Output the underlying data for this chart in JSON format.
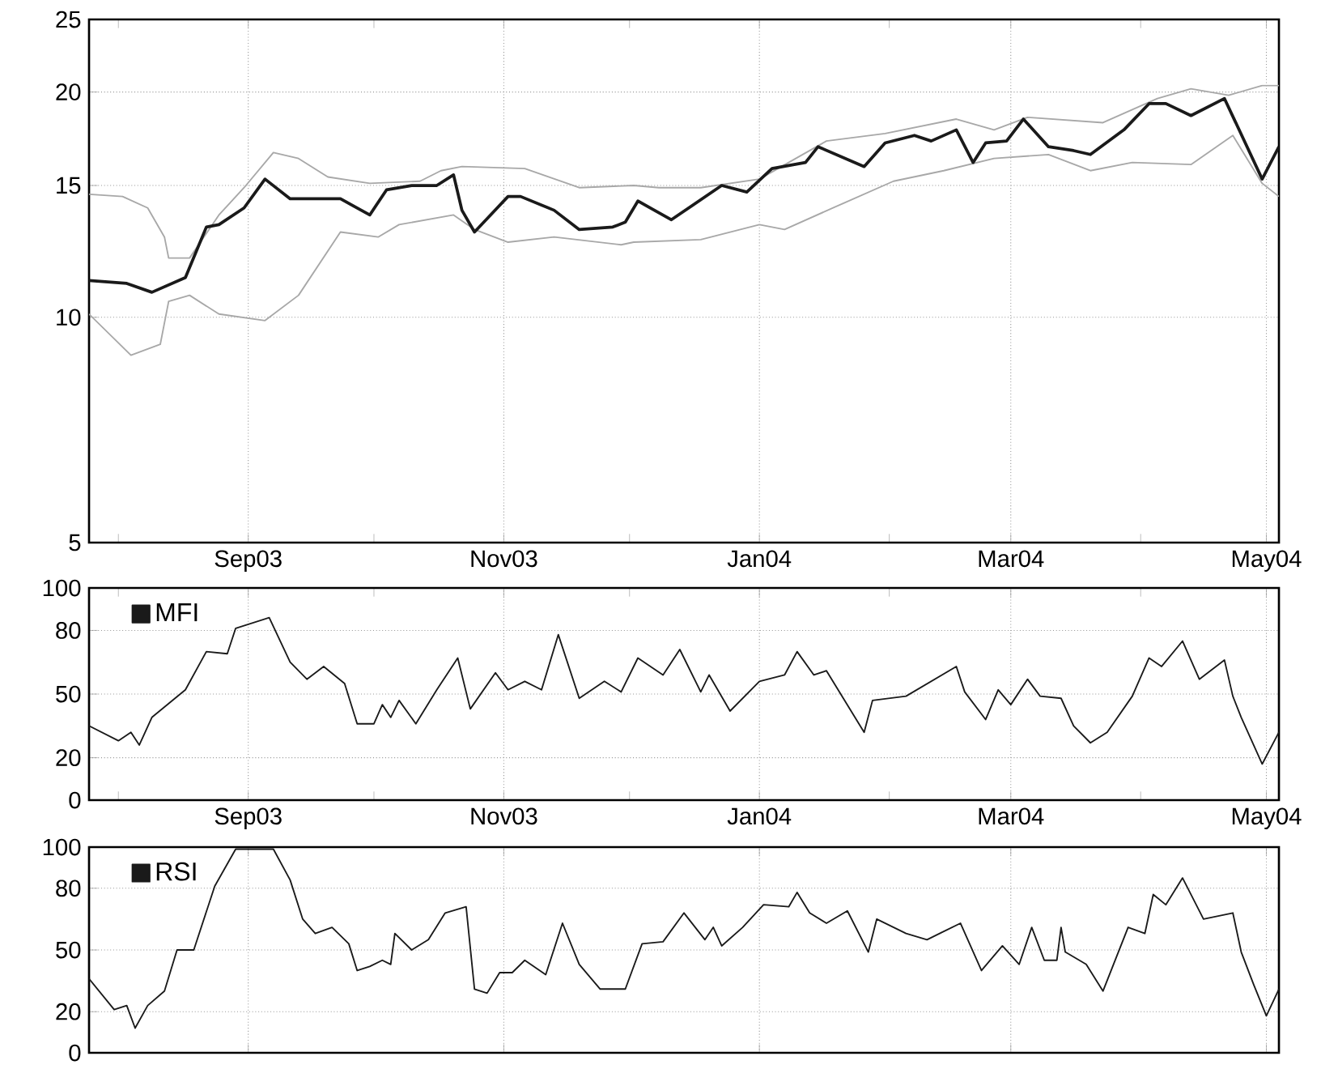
{
  "chart_data": [
    {
      "type": "line",
      "log": "y",
      "grid": true,
      "legend": false,
      "xlim": [
        "2003-07-25",
        "2004-05-04"
      ],
      "ylim": [
        5,
        25
      ],
      "yticks": [
        5,
        10,
        15,
        20,
        25
      ],
      "xticks": [
        {
          "value": "2003-08-01",
          "label": null
        },
        {
          "value": "2003-09-01",
          "label": "Sep03"
        },
        {
          "value": "2003-10-01",
          "label": null
        },
        {
          "value": "2003-11-01",
          "label": "Nov03"
        },
        {
          "value": "2003-12-01",
          "label": null
        },
        {
          "value": "2004-01-01",
          "label": "Jan04"
        },
        {
          "value": "2004-02-01",
          "label": null
        },
        {
          "value": "2004-03-01",
          "label": "Mar04"
        },
        {
          "value": "2004-04-01",
          "label": null
        },
        {
          "value": "2004-05-01",
          "label": "May04"
        }
      ],
      "series": [
        {
          "color": "#a8a8a8",
          "x": [
            "2003-07-25",
            "2003-08-02",
            "2003-08-08",
            "2003-08-12",
            "2003-08-13",
            "2003-08-18",
            "2003-08-25",
            "2003-08-31",
            "2003-09-07",
            "2003-09-13",
            "2003-09-20",
            "2003-09-30",
            "2003-10-12",
            "2003-10-17",
            "2003-10-22",
            "2003-11-06",
            "2003-11-19",
            "2003-12-02",
            "2003-12-08",
            "2003-12-18",
            "2004-01-01",
            "2004-01-17",
            "2004-01-31",
            "2004-02-17",
            "2004-02-26",
            "2004-03-05",
            "2004-03-23",
            "2004-04-05",
            "2004-04-13",
            "2004-04-22",
            "2004-04-30",
            "2004-05-04"
          ],
          "values": [
            14.6,
            14.5,
            14.0,
            12.8,
            12.0,
            12.0,
            13.7,
            14.9,
            16.6,
            16.3,
            15.4,
            15.1,
            15.2,
            15.7,
            15.9,
            15.8,
            14.9,
            15.0,
            14.9,
            14.9,
            15.3,
            17.2,
            17.6,
            18.4,
            17.8,
            18.5,
            18.2,
            19.6,
            20.2,
            19.8,
            20.4,
            20.4
          ]
        },
        {
          "color": "#a8a8a8",
          "x": [
            "2003-07-25",
            "2003-08-04",
            "2003-08-11",
            "2003-08-13",
            "2003-08-18",
            "2003-08-25",
            "2003-09-05",
            "2003-09-13",
            "2003-09-23",
            "2003-10-02",
            "2003-10-07",
            "2003-10-20",
            "2003-10-25",
            "2003-11-02",
            "2003-11-13",
            "2003-11-29",
            "2003-12-02",
            "2003-12-18",
            "2004-01-01",
            "2004-01-07",
            "2004-01-21",
            "2004-02-02",
            "2004-02-14",
            "2004-02-26",
            "2004-03-10",
            "2004-03-20",
            "2004-03-30",
            "2004-04-13",
            "2004-04-23",
            "2004-04-30",
            "2004-05-04"
          ],
          "values": [
            10.1,
            8.9,
            9.2,
            10.5,
            10.7,
            10.1,
            9.9,
            10.7,
            13.0,
            12.8,
            13.3,
            13.7,
            13.1,
            12.6,
            12.8,
            12.5,
            12.6,
            12.7,
            13.3,
            13.1,
            14.2,
            15.2,
            15.7,
            16.3,
            16.5,
            15.7,
            16.1,
            16.0,
            17.5,
            15.1,
            14.5
          ]
        },
        {
          "color": "#1a1a1a",
          "x": [
            "2003-07-25",
            "2003-08-03",
            "2003-08-09",
            "2003-08-17",
            "2003-08-22",
            "2003-08-25",
            "2003-08-31",
            "2003-09-05",
            "2003-09-11",
            "2003-09-17",
            "2003-09-23",
            "2003-09-30",
            "2003-10-04",
            "2003-10-10",
            "2003-10-16",
            "2003-10-20",
            "2003-10-22",
            "2003-10-25",
            "2003-11-02",
            "2003-11-05",
            "2003-11-13",
            "2003-11-19",
            "2003-11-27",
            "2003-11-30",
            "2003-12-03",
            "2003-12-11",
            "2003-12-23",
            "2003-12-29",
            "2004-01-04",
            "2004-01-12",
            "2004-01-15",
            "2004-01-26",
            "2004-01-31",
            "2004-02-07",
            "2004-02-11",
            "2004-02-17",
            "2004-02-21",
            "2004-02-24",
            "2004-02-29",
            "2004-03-04",
            "2004-03-10",
            "2004-03-16",
            "2004-03-20",
            "2004-03-28",
            "2004-04-03",
            "2004-04-07",
            "2004-04-13",
            "2004-04-21",
            "2004-04-30",
            "2004-05-04"
          ],
          "values": [
            11.2,
            11.1,
            10.8,
            11.3,
            13.2,
            13.3,
            14.0,
            15.3,
            14.4,
            14.4,
            14.4,
            13.7,
            14.8,
            15.0,
            15.0,
            15.5,
            13.9,
            13.0,
            14.5,
            14.5,
            13.9,
            13.1,
            13.2,
            13.4,
            14.3,
            13.5,
            15.0,
            14.7,
            15.8,
            16.1,
            16.9,
            15.9,
            17.1,
            17.5,
            17.2,
            17.8,
            16.1,
            17.1,
            17.2,
            18.4,
            16.9,
            16.7,
            16.5,
            17.8,
            19.3,
            19.3,
            18.6,
            19.6,
            15.3,
            16.9
          ]
        }
      ]
    },
    {
      "type": "line",
      "grid": true,
      "legend": "top left",
      "xlim": [
        "2003-07-25",
        "2004-05-04"
      ],
      "ylim": [
        0,
        100
      ],
      "yticks": [
        0,
        20,
        50,
        80,
        100
      ],
      "xticks": [
        {
          "value": "2003-08-01",
          "label": null
        },
        {
          "value": "2003-09-01",
          "label": "Sep03"
        },
        {
          "value": "2003-10-01",
          "label": null
        },
        {
          "value": "2003-11-01",
          "label": "Nov03"
        },
        {
          "value": "2003-12-01",
          "label": null
        },
        {
          "value": "2004-01-01",
          "label": "Jan04"
        },
        {
          "value": "2004-02-01",
          "label": null
        },
        {
          "value": "2004-03-01",
          "label": "Mar04"
        },
        {
          "value": "2004-04-01",
          "label": null
        },
        {
          "value": "2004-05-01",
          "label": "May04"
        }
      ],
      "series": [
        {
          "name": "MFI",
          "color": "#1a1a1a",
          "x": [
            "2003-07-25",
            "2003-08-01",
            "2003-08-04",
            "2003-08-06",
            "2003-08-09",
            "2003-08-17",
            "2003-08-22",
            "2003-08-27",
            "2003-08-29",
            "2003-09-06",
            "2003-09-11",
            "2003-09-15",
            "2003-09-19",
            "2003-09-24",
            "2003-09-27",
            "2003-10-01",
            "2003-10-03",
            "2003-10-05",
            "2003-10-07",
            "2003-10-11",
            "2003-10-16",
            "2003-10-21",
            "2003-10-24",
            "2003-10-30",
            "2003-11-02",
            "2003-11-06",
            "2003-11-10",
            "2003-11-14",
            "2003-11-19",
            "2003-11-25",
            "2003-11-29",
            "2003-12-03",
            "2003-12-09",
            "2003-12-13",
            "2003-12-18",
            "2003-12-20",
            "2003-12-25",
            "2004-01-01",
            "2004-01-07",
            "2004-01-10",
            "2004-01-14",
            "2004-01-17",
            "2004-01-26",
            "2004-01-28",
            "2004-02-05",
            "2004-02-17",
            "2004-02-19",
            "2004-02-24",
            "2004-02-27",
            "2004-03-01",
            "2004-03-05",
            "2004-03-08",
            "2004-03-13",
            "2004-03-16",
            "2004-03-20",
            "2004-03-24",
            "2004-03-30",
            "2004-04-03",
            "2004-04-06",
            "2004-04-11",
            "2004-04-15",
            "2004-04-21",
            "2004-04-23",
            "2004-04-25",
            "2004-04-30",
            "2004-05-04"
          ],
          "values": [
            35,
            28,
            32,
            26,
            39,
            52,
            70,
            69,
            81,
            86,
            65,
            57,
            63,
            55,
            36,
            36,
            45,
            39,
            47,
            36,
            52,
            67,
            43,
            60,
            52,
            56,
            52,
            78,
            48,
            56,
            51,
            67,
            59,
            71,
            51,
            59,
            42,
            56,
            59,
            70,
            59,
            61,
            32,
            47,
            49,
            63,
            51,
            38,
            52,
            45,
            57,
            49,
            48,
            35,
            27,
            32,
            49,
            67,
            63,
            75,
            57,
            66,
            49,
            39,
            17,
            32
          ]
        }
      ]
    },
    {
      "type": "line",
      "grid": true,
      "legend": "top left",
      "tick_labels": "y",
      "xlim": [
        "2003-07-25",
        "2004-05-04"
      ],
      "ylim": [
        0,
        100
      ],
      "yticks": [
        0,
        20,
        50,
        80,
        100
      ],
      "xticks": [
        {
          "value": "2003-09-01",
          "label": null
        },
        {
          "value": "2003-11-01",
          "label": null
        },
        {
          "value": "2004-01-01",
          "label": null
        },
        {
          "value": "2004-03-01",
          "label": null
        },
        {
          "value": "2004-05-01",
          "label": null
        }
      ],
      "series": [
        {
          "name": "RSI",
          "color": "#1a1a1a",
          "x": [
            "2003-07-25",
            "2003-07-31",
            "2003-08-03",
            "2003-08-05",
            "2003-08-08",
            "2003-08-12",
            "2003-08-15",
            "2003-08-19",
            "2003-08-24",
            "2003-08-29",
            "2003-09-07",
            "2003-09-11",
            "2003-09-14",
            "2003-09-17",
            "2003-09-21",
            "2003-09-25",
            "2003-09-27",
            "2003-09-30",
            "2003-10-03",
            "2003-10-05",
            "2003-10-06",
            "2003-10-10",
            "2003-10-14",
            "2003-10-18",
            "2003-10-23",
            "2003-10-25",
            "2003-10-28",
            "2003-10-31",
            "2003-11-03",
            "2003-11-06",
            "2003-11-11",
            "2003-11-15",
            "2003-11-19",
            "2003-11-24",
            "2003-11-30",
            "2003-12-04",
            "2003-12-09",
            "2003-12-14",
            "2003-12-19",
            "2003-12-21",
            "2003-12-23",
            "2003-12-28",
            "2004-01-02",
            "2004-01-08",
            "2004-01-10",
            "2004-01-13",
            "2004-01-17",
            "2004-01-22",
            "2004-01-27",
            "2004-01-29",
            "2004-02-05",
            "2004-02-10",
            "2004-02-14",
            "2004-02-18",
            "2004-02-23",
            "2004-02-28",
            "2004-03-03",
            "2004-03-06",
            "2004-03-09",
            "2004-03-12",
            "2004-03-13",
            "2004-03-14",
            "2004-03-19",
            "2004-03-23",
            "2004-03-29",
            "2004-04-02",
            "2004-04-04",
            "2004-04-07",
            "2004-04-11",
            "2004-04-16",
            "2004-04-23",
            "2004-04-25",
            "2004-04-28",
            "2004-05-01",
            "2004-05-04"
          ],
          "values": [
            36,
            21,
            23,
            12,
            23,
            30,
            50,
            50,
            81,
            99,
            99,
            84,
            65,
            58,
            61,
            53,
            40,
            42,
            45,
            43,
            58,
            50,
            55,
            68,
            71,
            31,
            29,
            39,
            39,
            45,
            38,
            63,
            43,
            31,
            31,
            53,
            54,
            68,
            55,
            61,
            52,
            61,
            72,
            71,
            78,
            68,
            63,
            69,
            49,
            65,
            58,
            55,
            59,
            63,
            40,
            52,
            43,
            61,
            45,
            45,
            61,
            49,
            43,
            30,
            61,
            58,
            77,
            72,
            85,
            65,
            68,
            49,
            33,
            18,
            31
          ]
        }
      ]
    }
  ]
}
